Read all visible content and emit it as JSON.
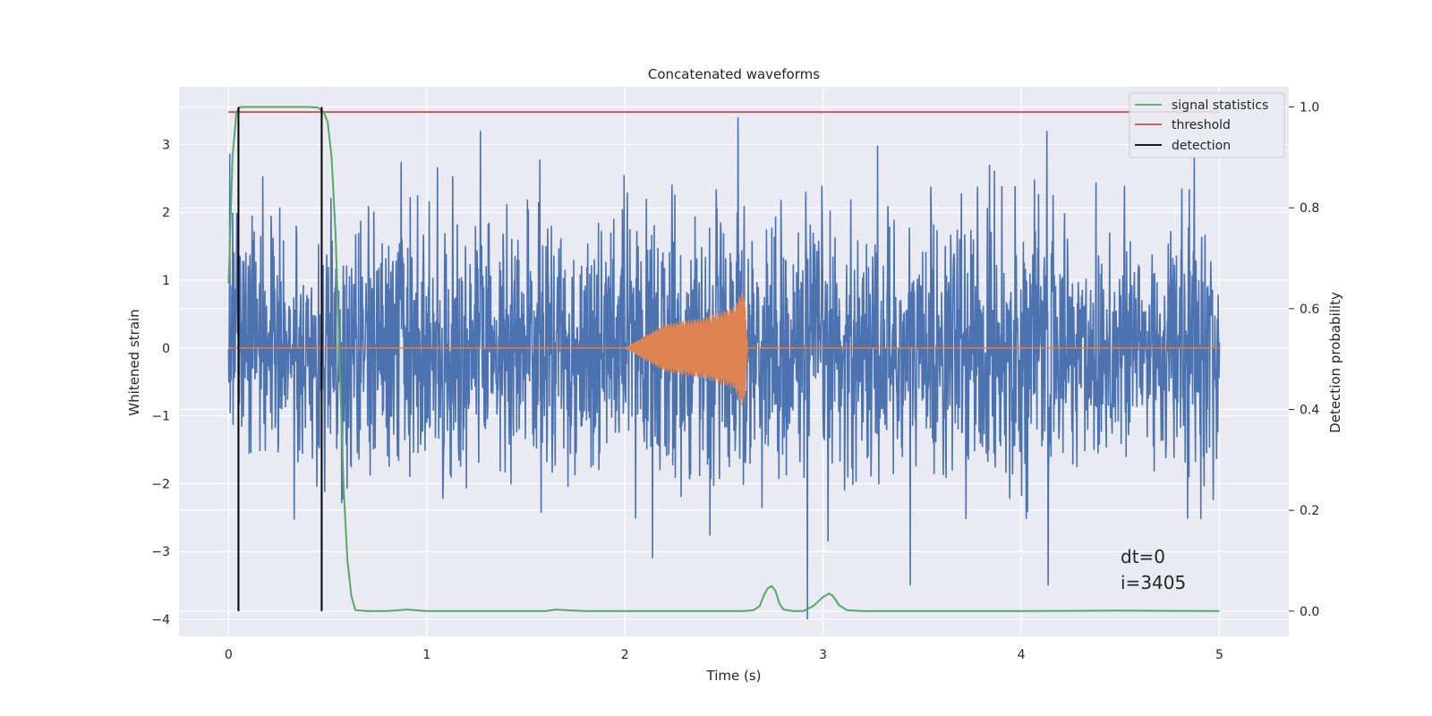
{
  "chart_data": {
    "type": "line",
    "title": "Concatenated waveforms",
    "xlabel": "Time (s)",
    "ylabel": "Whitened strain",
    "y2label": "Detection probability",
    "xlim": [
      -0.25,
      5.35
    ],
    "ylim": [
      -4.25,
      3.85
    ],
    "y2lim": [
      -0.05,
      1.04
    ],
    "xticks": [
      0,
      1,
      2,
      3,
      4,
      5
    ],
    "yticks": [
      -4,
      -3,
      -2,
      -1,
      0,
      1,
      2,
      3
    ],
    "y2ticks": [
      0.0,
      0.2,
      0.4,
      0.6,
      0.8,
      1.0
    ],
    "xtick_labels": [
      "0",
      "1",
      "2",
      "3",
      "4",
      "5"
    ],
    "ytick_labels": [
      "−4",
      "−3",
      "−2",
      "−1",
      "0",
      "1",
      "2",
      "3"
    ],
    "y2tick_labels": [
      "0.0",
      "0.2",
      "0.4",
      "0.6",
      "0.8",
      "1.0"
    ],
    "grid": true,
    "legend_position": "top-right",
    "colors": {
      "noise": "#4c72b0",
      "waveform": "#dd8452",
      "signal_statistics": "#55a868",
      "threshold": "#c44e52",
      "detection": "#000000",
      "background": "#eaeaf2",
      "grid": "#ffffff"
    },
    "series": [
      {
        "name": "signal statistics",
        "axis": "right",
        "x": [
          0.0,
          0.02,
          0.04,
          0.06,
          0.08,
          0.1,
          0.2,
          0.3,
          0.4,
          0.45,
          0.48,
          0.5,
          0.52,
          0.54,
          0.56,
          0.58,
          0.6,
          0.62,
          0.64,
          0.7,
          0.8,
          0.9,
          1.0,
          1.2,
          1.4,
          1.6,
          1.65,
          1.7,
          1.8,
          2.0,
          2.2,
          2.4,
          2.6,
          2.65,
          2.68,
          2.7,
          2.72,
          2.74,
          2.76,
          2.78,
          2.8,
          2.85,
          2.9,
          2.95,
          3.0,
          3.03,
          3.05,
          3.08,
          3.12,
          3.2,
          3.5,
          4.0,
          4.5,
          5.0
        ],
        "values": [
          0.65,
          0.9,
          0.99,
          1.0,
          1.0,
          1.0,
          1.0,
          1.0,
          1.0,
          0.999,
          0.99,
          0.97,
          0.9,
          0.75,
          0.5,
          0.25,
          0.1,
          0.03,
          0.002,
          0.0,
          0.0,
          0.003,
          0.0,
          0.0,
          0.0,
          0.0,
          0.003,
          0.002,
          0.0,
          0.0,
          0.0,
          0.0,
          0.0,
          0.002,
          0.01,
          0.03,
          0.045,
          0.05,
          0.04,
          0.015,
          0.003,
          0.0,
          0.0,
          0.01,
          0.028,
          0.035,
          0.03,
          0.012,
          0.002,
          0.0,
          0.0,
          0.0,
          0.001,
          0.0
        ]
      },
      {
        "name": "threshold",
        "axis": "right",
        "x": [
          0.0,
          5.0
        ],
        "values": [
          0.99,
          0.99
        ]
      },
      {
        "name": "detection",
        "axis": "right",
        "vlines": [
          0.05,
          0.47
        ],
        "range": [
          0.0,
          1.0
        ]
      },
      {
        "name": "",
        "axis": "left",
        "kind": "noise",
        "x_range": [
          0.0,
          5.0
        ],
        "approx_envelope": [
          -2.5,
          2.5
        ],
        "extreme_min": -4.0,
        "extreme_max": 3.4
      },
      {
        "name": "",
        "axis": "left",
        "kind": "chirp",
        "x": [
          0.0,
          2.0,
          2.2,
          2.4,
          2.55,
          2.6,
          2.62,
          2.63,
          5.0
        ],
        "values": [
          0.0,
          0.0,
          0.35,
          0.45,
          0.6,
          0.9,
          0.0,
          0.0,
          0.0
        ],
        "description_values": "envelope amplitude"
      }
    ],
    "annotations": [
      "dt=0",
      "i=3405"
    ]
  }
}
